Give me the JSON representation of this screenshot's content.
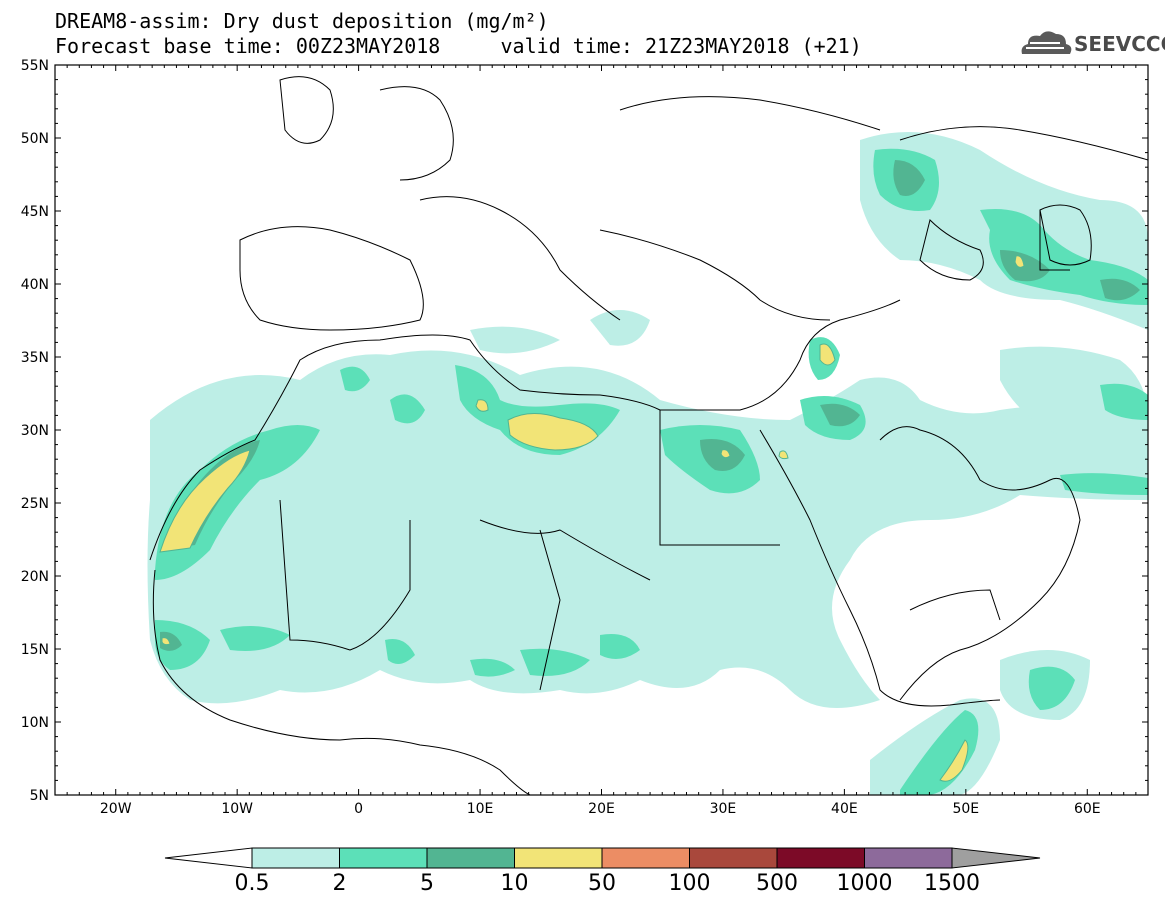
{
  "title": {
    "line1": "DREAM8-assim: Dry dust deposition (mg/m²)",
    "line2": "Forecast base time: 00Z23MAY2018     valid time: 21Z23MAY2018 (+21)"
  },
  "logo": {
    "text": "SEEVCCC",
    "icon": "cloud-icon"
  },
  "axes": {
    "lat_labels": [
      "55N",
      "50N",
      "45N",
      "40N",
      "35N",
      "30N",
      "25N",
      "20N",
      "15N",
      "10N",
      "5N"
    ],
    "lon_labels": [
      "20W",
      "10W",
      "0",
      "10E",
      "20E",
      "30E",
      "40E",
      "50E",
      "60E"
    ]
  },
  "colorbar": {
    "colors": [
      "#ffffff",
      "#bdeee6",
      "#5ce0b8",
      "#52b592",
      "#f2e477",
      "#ec8d64",
      "#a9483c",
      "#7c0a27",
      "#8d6a9b",
      "#9f9f9f"
    ],
    "labels": [
      "0.5",
      "2",
      "5",
      "10",
      "50",
      "100",
      "500",
      "1000",
      "1500"
    ]
  },
  "map": {
    "lon_range": [
      -25,
      65
    ],
    "lat_range": [
      5,
      55
    ],
    "level_colors": [
      "#bdeee6",
      "#5ce0b8",
      "#52b592",
      "#f2e477"
    ]
  }
}
